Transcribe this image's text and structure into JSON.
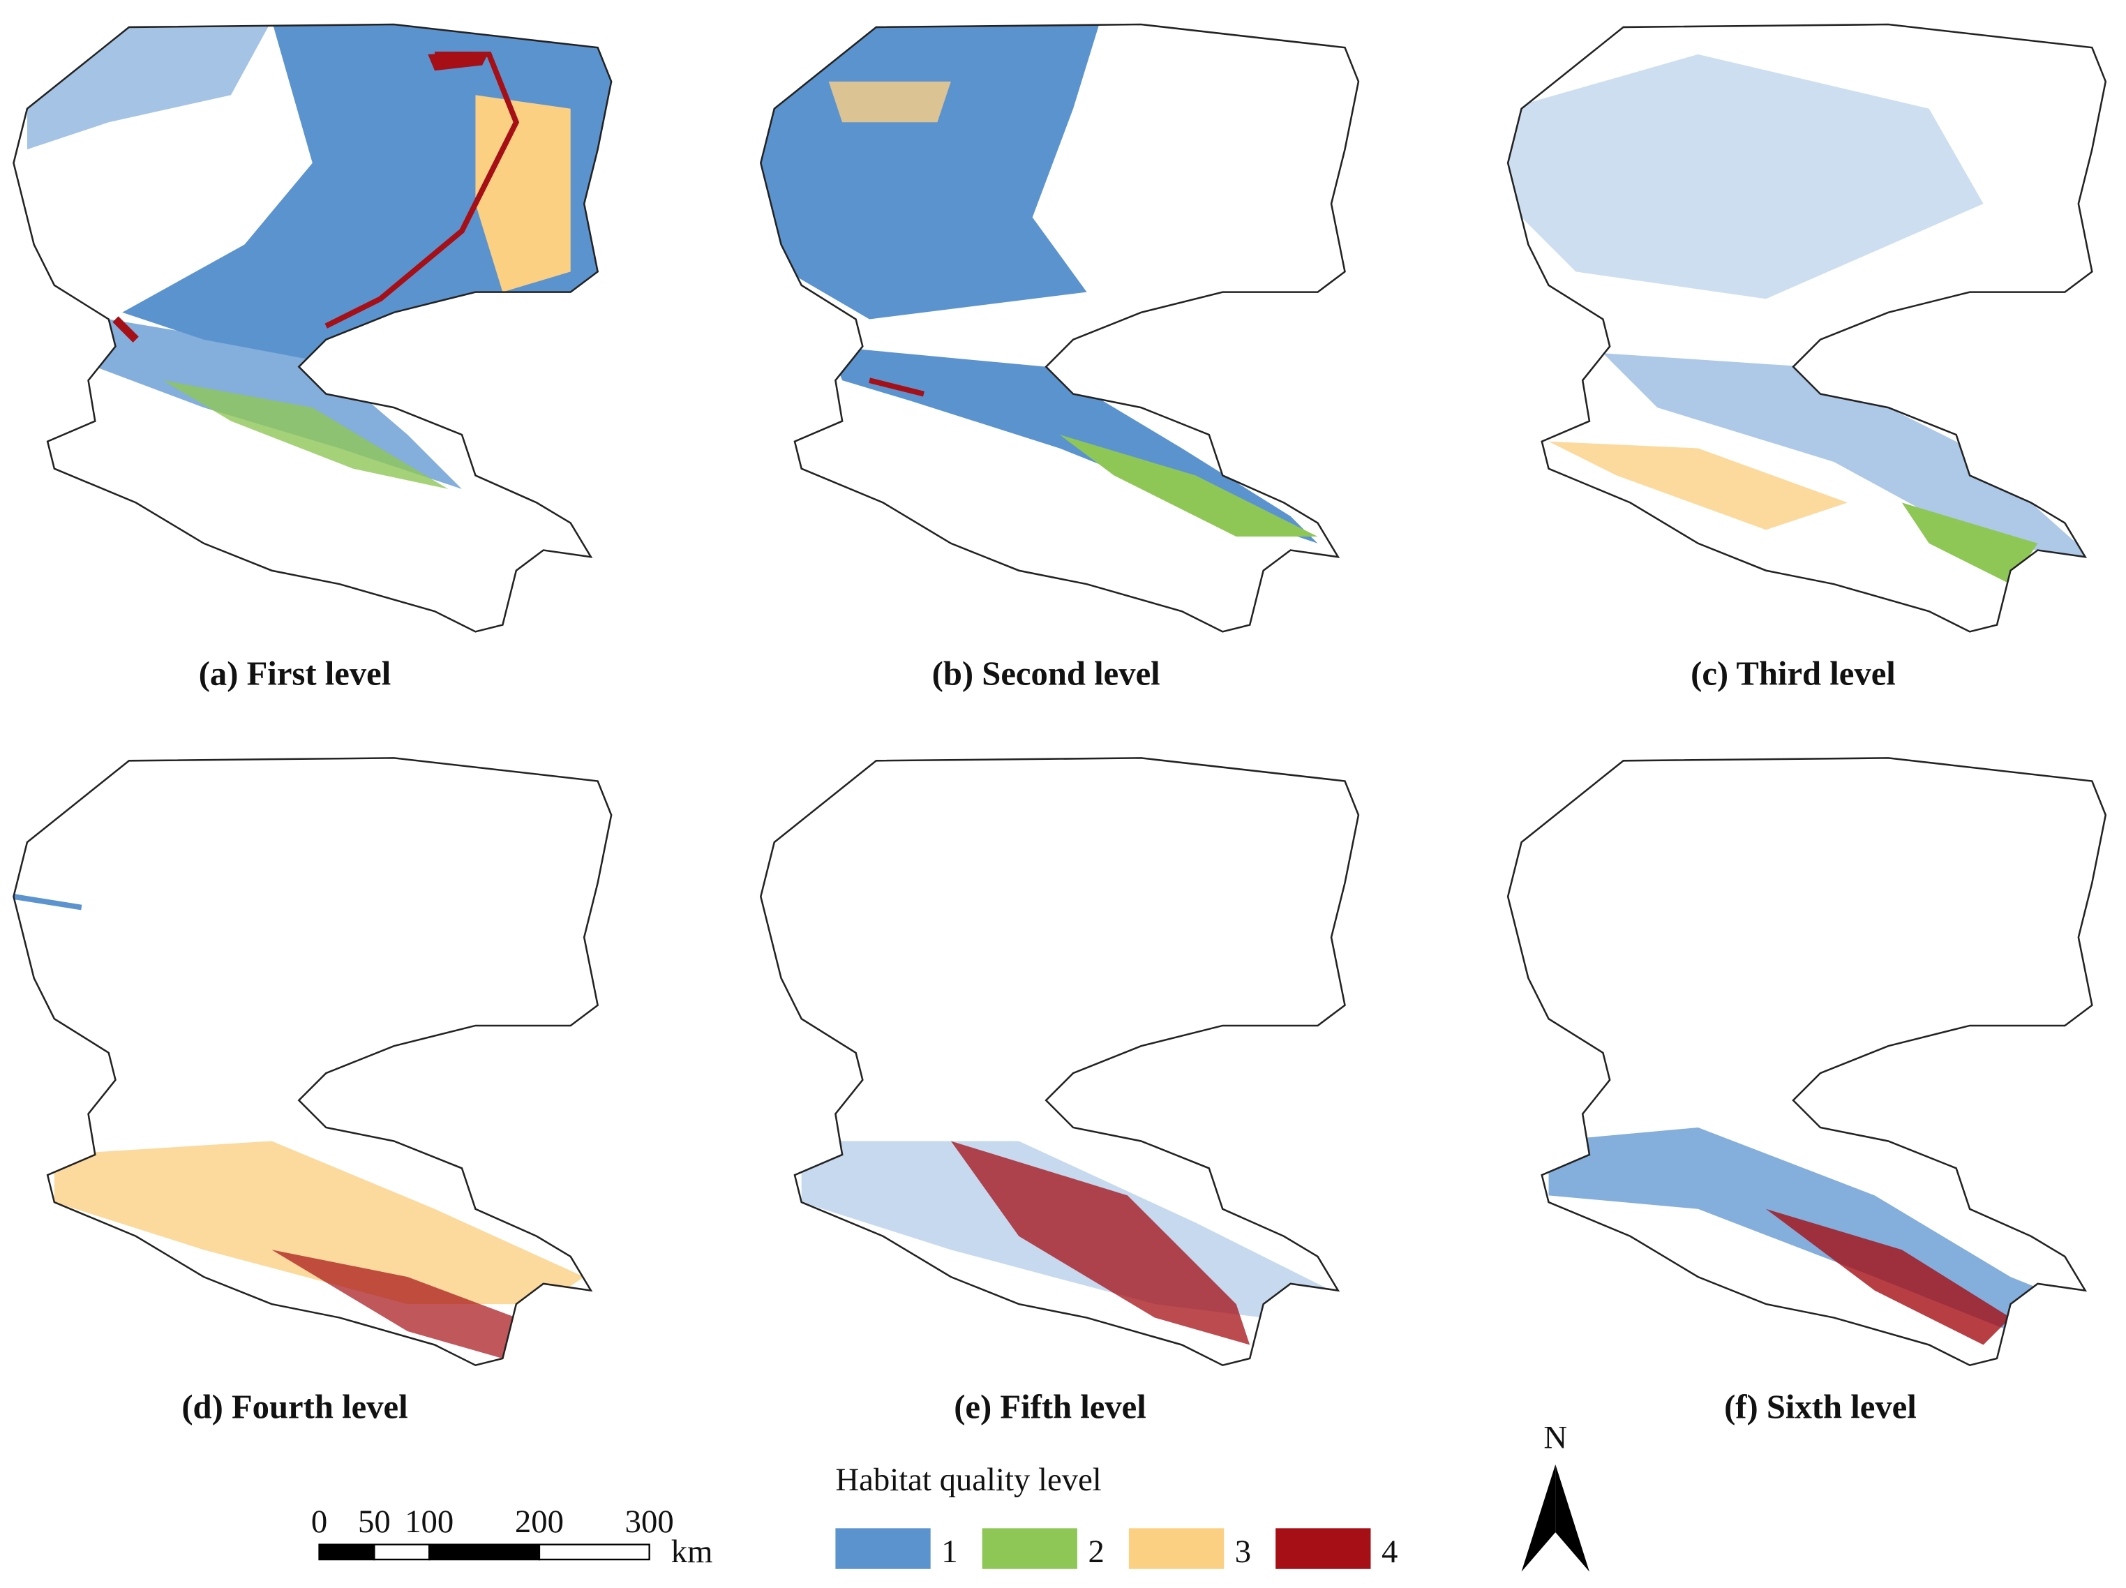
{
  "panels": [
    {
      "label": "(a) First level"
    },
    {
      "label": "(b) Second level"
    },
    {
      "label": "(c) Third level"
    },
    {
      "label": "(d) Fourth level"
    },
    {
      "label": "(e) Fifth level"
    },
    {
      "label": "(f) Sixth level"
    }
  ],
  "legend": {
    "title": "Habitat quality level",
    "items": [
      {
        "label": "1",
        "color": "#5b93cf"
      },
      {
        "label": "2",
        "color": "#8fc757"
      },
      {
        "label": "3",
        "color": "#fbd083"
      },
      {
        "label": "4",
        "color": "#a50f15"
      }
    ]
  },
  "scale_bar": {
    "ticks": [
      0,
      50,
      100,
      200,
      300
    ],
    "unit": "km"
  },
  "north_arrow": "N"
}
